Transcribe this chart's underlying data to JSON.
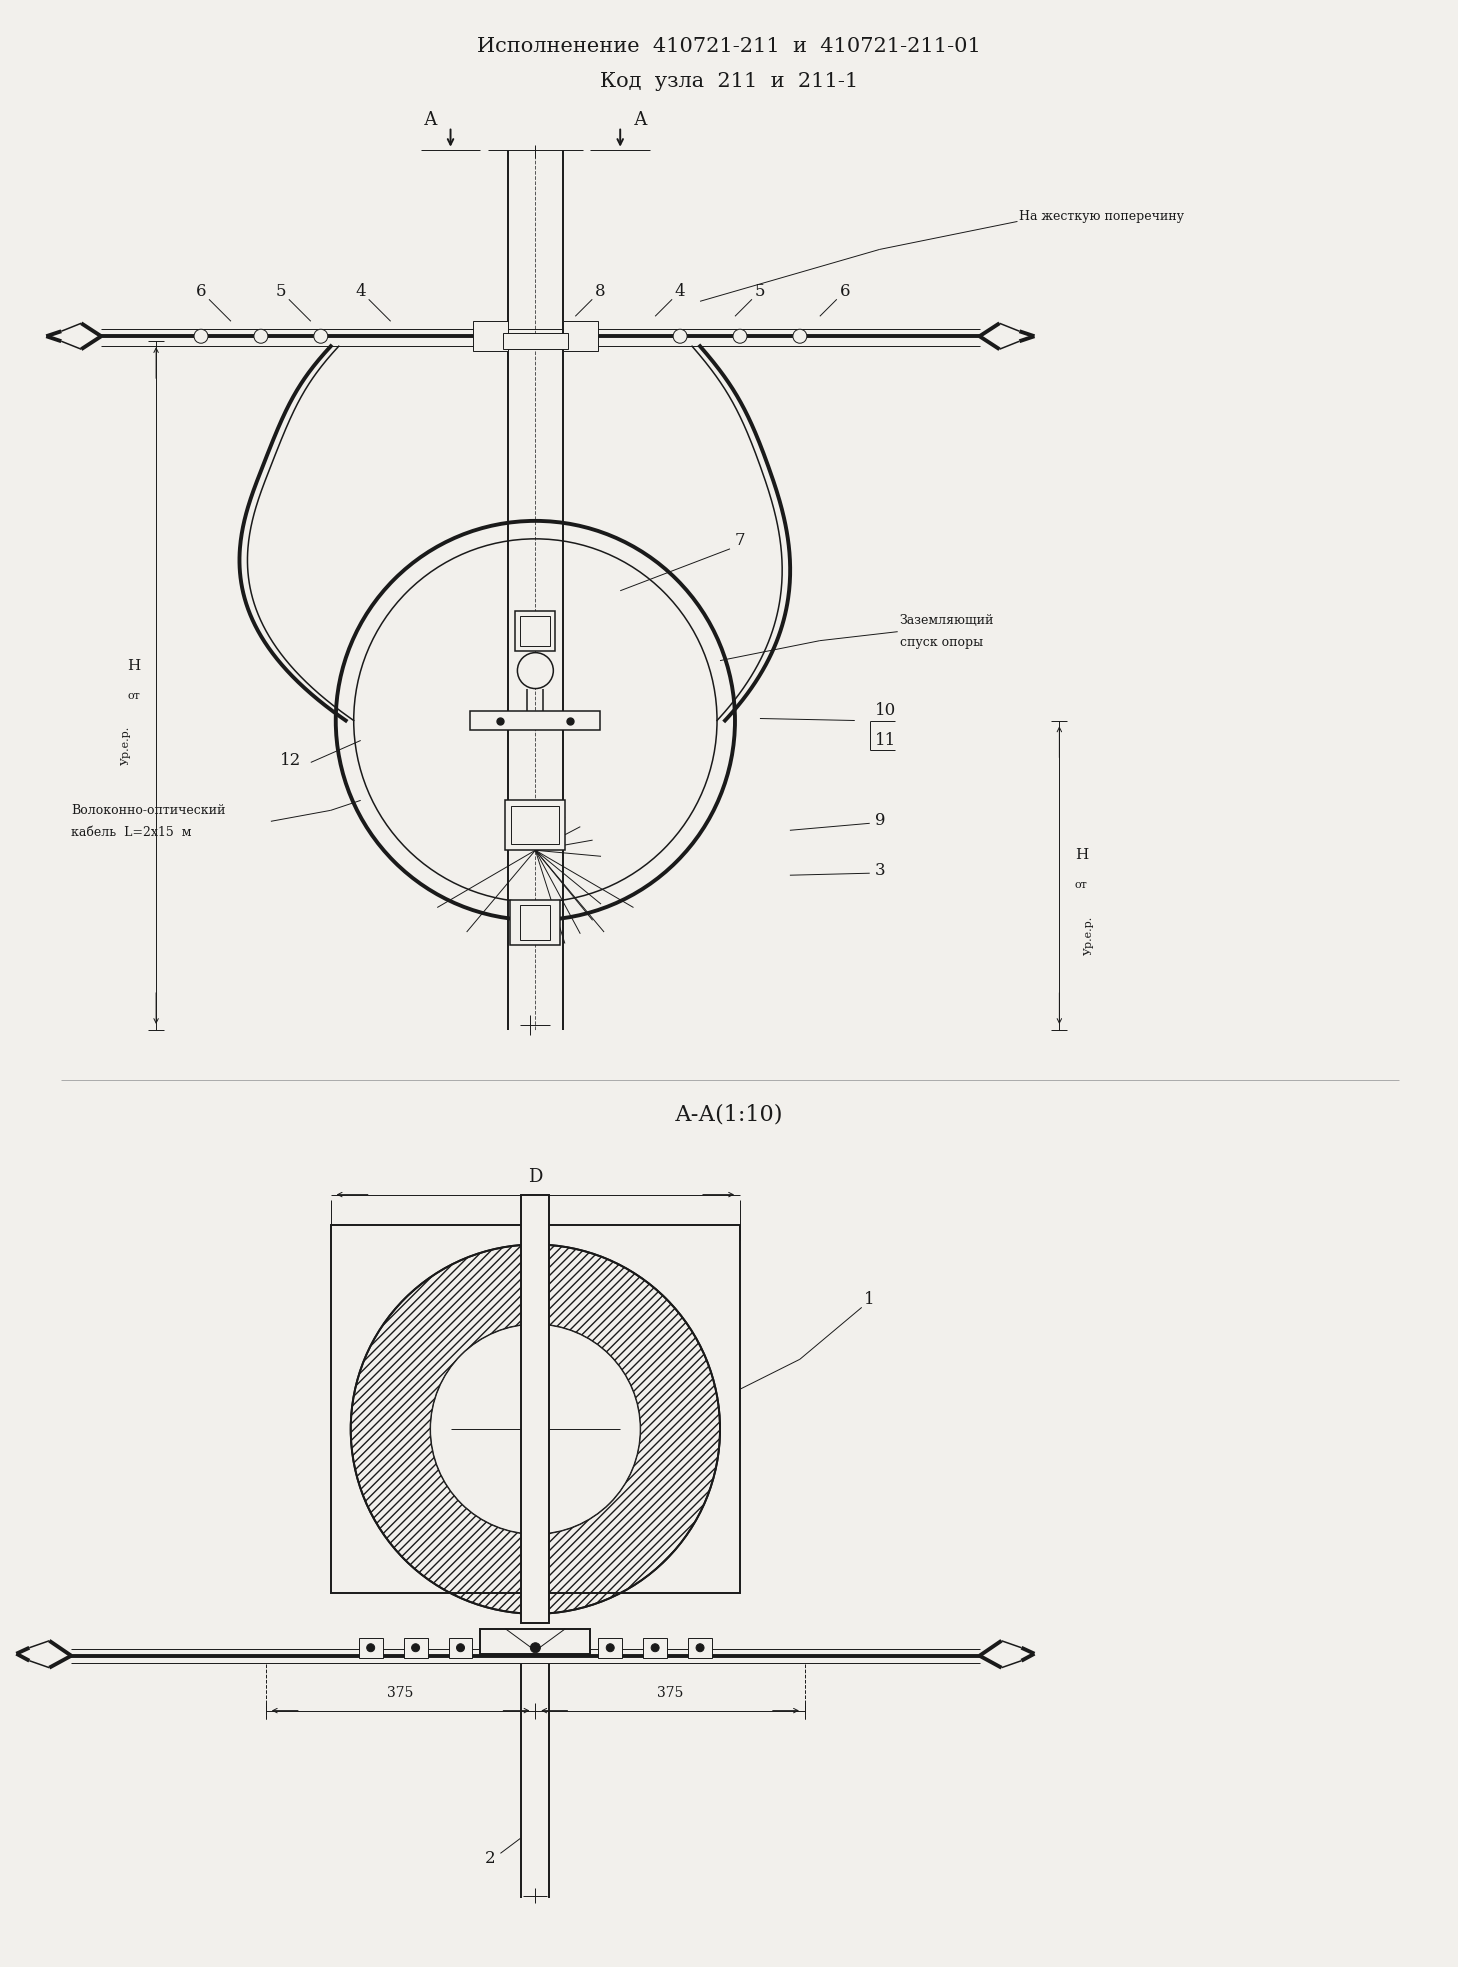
{
  "title_line1": "Исполненение  410721-211  и  410721-211-01",
  "title_line2": "Код  узла  211  и  211-1",
  "section_label": "А-А(1:10)",
  "bg_color": "#f2f0ec",
  "line_color": "#1a1a1a",
  "text_color": "#1a1a1a",
  "title_fontsize": 15,
  "label_fontsize": 11,
  "small_fontsize": 9
}
